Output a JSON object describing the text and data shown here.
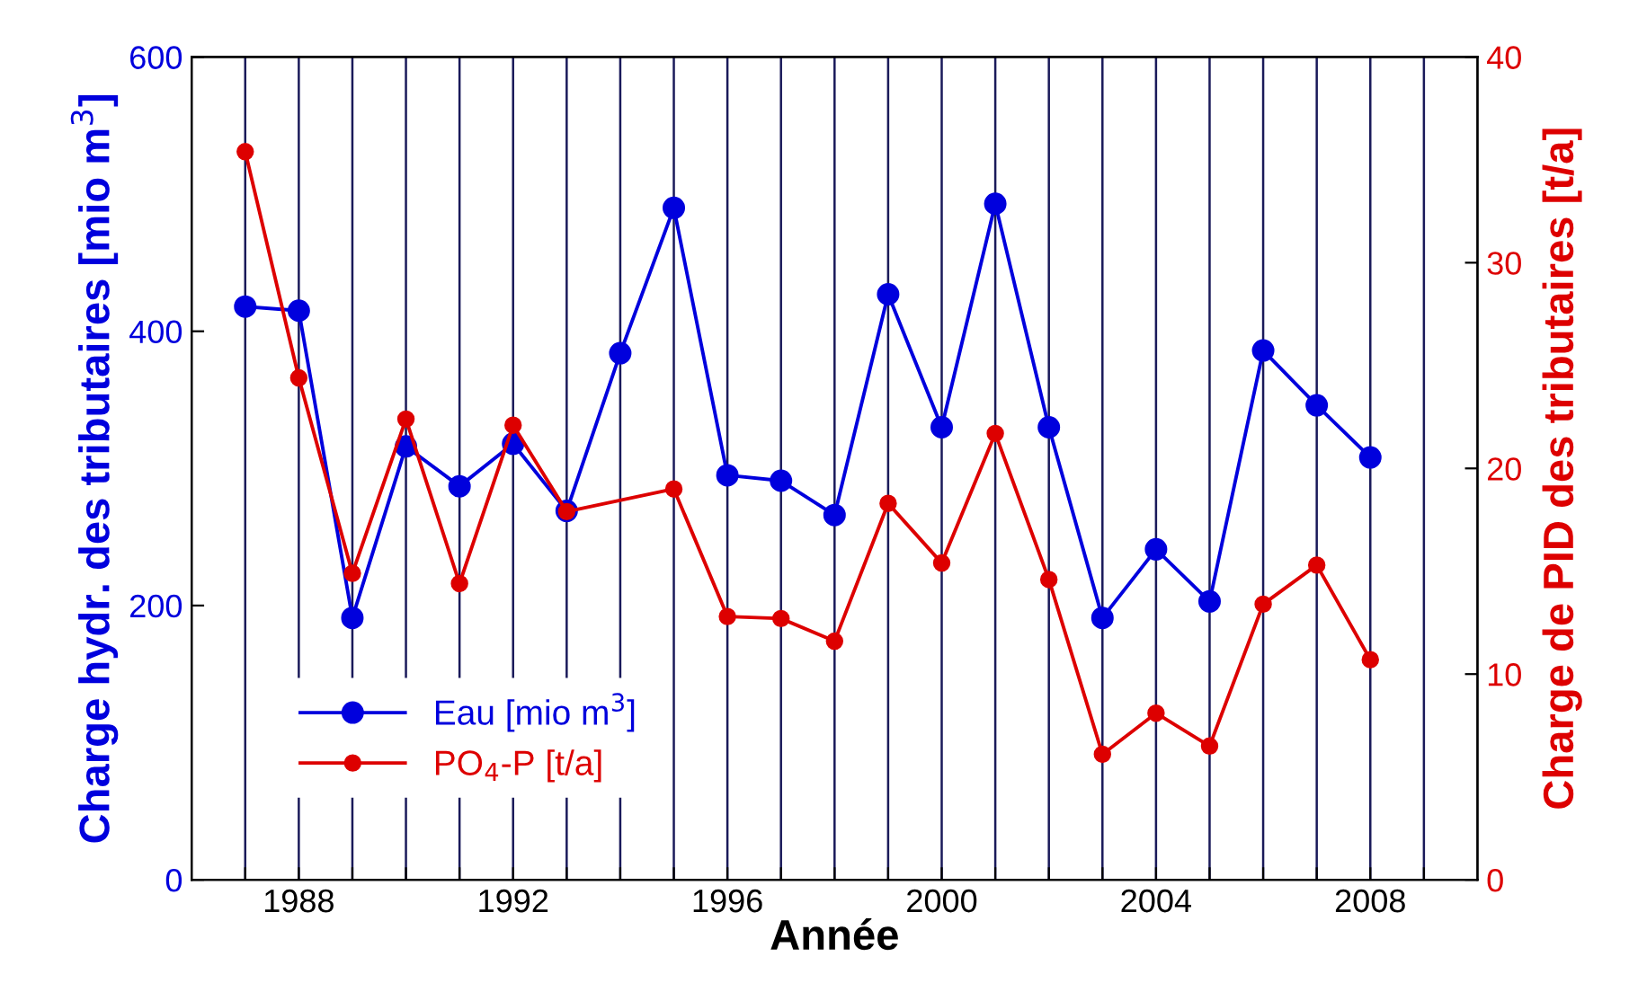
{
  "chart_data": {
    "type": "line",
    "xlabel": "Année",
    "ylabel": "Charge hydr. des tributaires [mio m$^{3}$]",
    "y2label": "Charge de PID des tributaires [t/a]",
    "series": [
      {
        "name": "Eau [mio m$^{3}$]",
        "color": "#0000dd",
        "x": [
          1987,
          1988,
          1989,
          1990,
          1991,
          1992,
          1993,
          1994,
          1995,
          1996,
          1997,
          1998,
          1999,
          2000,
          2001,
          2002,
          2003,
          2004,
          2005,
          2006,
          2007,
          2008
        ],
        "values": [
          418,
          415,
          191,
          316,
          287,
          318,
          269,
          384,
          490,
          295,
          291,
          266,
          427,
          330,
          493,
          330,
          191,
          241,
          203,
          386,
          346,
          308
        ]
      },
      {
        "name": "PO$_{4}$-P [t/a]",
        "color": "#dd0000",
        "axis": "y2",
        "x": [
          1987,
          1988,
          1989,
          1990,
          1991,
          1992,
          1993,
          1995,
          1996,
          1997,
          1998,
          1999,
          2000,
          2001,
          2002,
          2003,
          2004,
          2005,
          2006,
          2007,
          2008
        ],
        "values": [
          35.4,
          24.4,
          14.9,
          22.4,
          14.4,
          22.1,
          17.9,
          19.0,
          12.8,
          12.7,
          11.6,
          18.3,
          15.4,
          21.7,
          14.6,
          6.1,
          8.1,
          6.5,
          13.4,
          15.3,
          10.7
        ]
      }
    ],
    "xlim": [
      1986,
      2010
    ],
    "xticks": [
      {
        "value": 1987,
        "label": null
      },
      1988,
      {
        "value": 1989,
        "label": null
      },
      {
        "value": 1990,
        "label": null
      },
      {
        "value": 1991,
        "label": null
      },
      1992,
      {
        "value": 1993,
        "label": null
      },
      {
        "value": 1994,
        "label": null
      },
      {
        "value": 1995,
        "label": null
      },
      1996,
      {
        "value": 1997,
        "label": null
      },
      {
        "value": 1998,
        "label": null
      },
      {
        "value": 1999,
        "label": null
      },
      2000,
      {
        "value": 2001,
        "label": null
      },
      {
        "value": 2002,
        "label": null
      },
      {
        "value": 2003,
        "label": null
      },
      2004,
      {
        "value": 2005,
        "label": null
      },
      {
        "value": 2006,
        "label": null
      },
      {
        "value": 2007,
        "label": null
      },
      2008,
      {
        "value": 2009,
        "label": null
      }
    ],
    "ylim": [
      0,
      600
    ],
    "yticks": [
      0,
      200,
      400,
      600
    ],
    "y2lim": [
      0,
      40
    ],
    "y2ticks": [
      0,
      10,
      20,
      30,
      40
    ],
    "grid": "x",
    "legend": "bottom left",
    "marker": "circle",
    "line_style": "solid"
  }
}
